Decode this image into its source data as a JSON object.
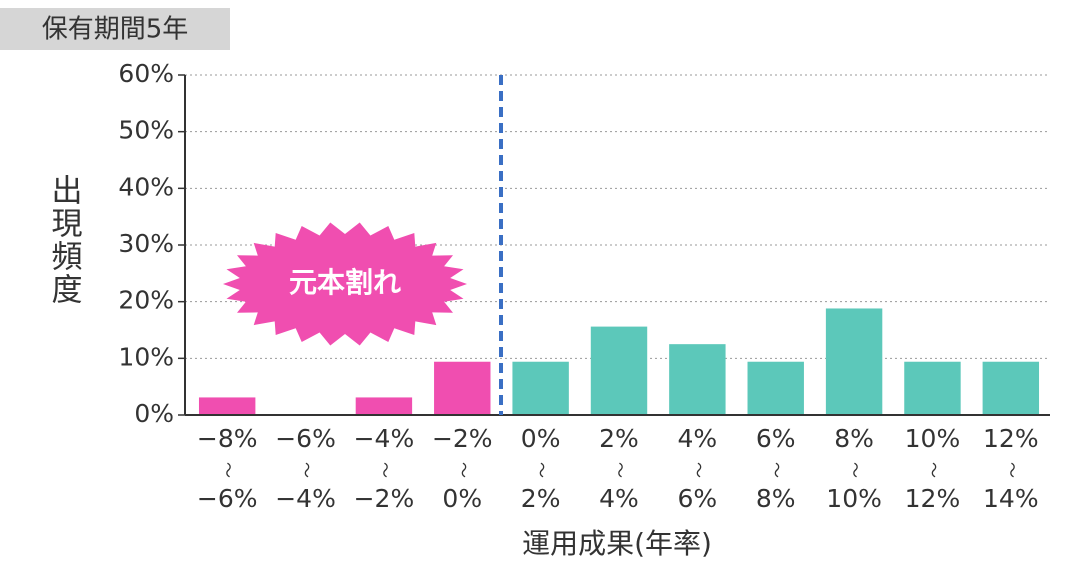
{
  "chart_data": {
    "type": "bar",
    "subtitle": "保有期間5年",
    "y_label": "出現頻度",
    "x_label": "運用成果(年率)",
    "annotation": "元本割れ",
    "categories": [
      [
        "−8%",
        "〜",
        "−6%"
      ],
      [
        "−6%",
        "〜",
        "−4%"
      ],
      [
        "−4%",
        "〜",
        "−2%"
      ],
      [
        "−2%",
        "〜",
        "0%"
      ],
      [
        "0%",
        "〜",
        "2%"
      ],
      [
        "2%",
        "〜",
        "4%"
      ],
      [
        "4%",
        "〜",
        "6%"
      ],
      [
        "6%",
        "〜",
        "8%"
      ],
      [
        "8%",
        "〜",
        "10%"
      ],
      [
        "10%",
        "〜",
        "12%"
      ],
      [
        "12%",
        "〜",
        "14%"
      ]
    ],
    "values": [
      3.1,
      0,
      3.1,
      9.4,
      9.4,
      15.6,
      12.5,
      9.4,
      18.8,
      9.4,
      9.4
    ],
    "colors": [
      "#f04eb0",
      "#f04eb0",
      "#f04eb0",
      "#f04eb0",
      "#5cc8ba",
      "#5cc8ba",
      "#5cc8ba",
      "#5cc8ba",
      "#5cc8ba",
      "#5cc8ba",
      "#5cc8ba"
    ],
    "ylim": [
      0,
      60
    ],
    "yticks": [
      {
        "value": 0,
        "label": "0%"
      },
      {
        "value": 10,
        "label": "10%"
      },
      {
        "value": 20,
        "label": "20%"
      },
      {
        "value": 30,
        "label": "30%"
      },
      {
        "value": 40,
        "label": "40%"
      },
      {
        "value": 50,
        "label": "50%"
      },
      {
        "value": 60,
        "label": "60%"
      }
    ],
    "grid": true
  }
}
